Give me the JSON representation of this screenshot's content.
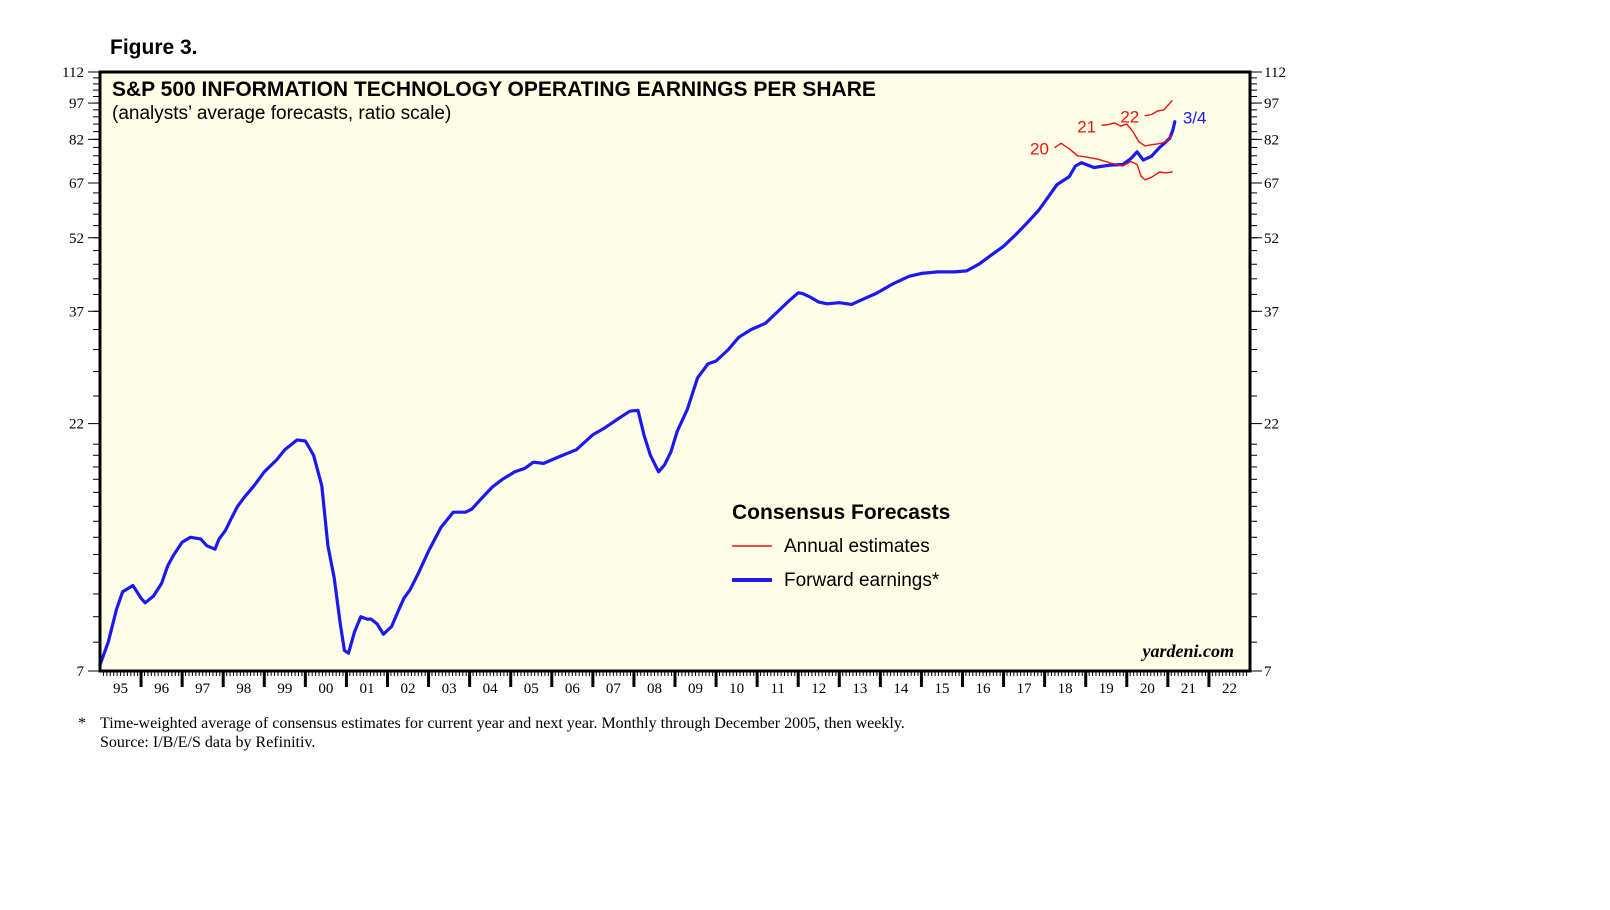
{
  "figure_label": "Figure 3.",
  "footnote": {
    "marker": "*",
    "text": "Time-weighted average of consensus estimates for current year and next year. Monthly through December 2005, then weekly.",
    "source": "Source: I/B/E/S data by Refinitiv."
  },
  "colors": {
    "plot_bg": "#fefee6",
    "forward": "#1a1aee",
    "annual": "#ee1111",
    "frame": "#000000"
  },
  "chart_data": {
    "type": "line",
    "title": "S&P 500 INFORMATION TECHNOLOGY OPERATING EARNINGS PER SHARE",
    "subtitle": "(analysts’ average forecasts, ratio scale)",
    "scale": "log",
    "ylim": [
      7,
      112
    ],
    "xlim": [
      1995,
      2023
    ],
    "y_ticks": [
      7,
      22,
      37,
      52,
      67,
      82,
      97,
      112
    ],
    "y_tick_labels": [
      "7",
      "22",
      "37",
      "52",
      "67",
      "82",
      "97",
      "112"
    ],
    "x_tick_labels": [
      "95",
      "96",
      "97",
      "98",
      "99",
      "00",
      "01",
      "02",
      "03",
      "04",
      "05",
      "06",
      "07",
      "08",
      "09",
      "10",
      "11",
      "12",
      "13",
      "14",
      "15",
      "16",
      "17",
      "18",
      "19",
      "20",
      "21",
      "22"
    ],
    "legend": {
      "title": "Consensus Forecasts",
      "items": [
        {
          "label": "Annual estimates",
          "series": "annual"
        },
        {
          "label": "Forward earnings*",
          "series": "forward"
        }
      ]
    },
    "watermark": "yardeni.com",
    "series": [
      {
        "name": "Forward earnings*",
        "key": "forward",
        "end_label": "3/4",
        "x": [
          1995.0,
          1995.2,
          1995.4,
          1995.55,
          1995.8,
          1996.0,
          1996.1,
          1996.3,
          1996.5,
          1996.65,
          1996.8,
          1997.0,
          1997.2,
          1997.45,
          1997.6,
          1997.8,
          1997.9,
          1998.05,
          1998.2,
          1998.35,
          1998.5,
          1998.75,
          1999.0,
          1999.3,
          1999.5,
          1999.8,
          2000.0,
          2000.2,
          2000.4,
          2000.55,
          2000.7,
          2000.85,
          2000.95,
          2001.05,
          2001.2,
          2001.35,
          2001.5,
          2001.6,
          2001.75,
          2001.9,
          2002.1,
          2002.25,
          2002.4,
          2002.55,
          2002.75,
          2003.0,
          2003.3,
          2003.6,
          2003.9,
          2004.05,
          2004.3,
          2004.55,
          2004.8,
          2005.1,
          2005.35,
          2005.55,
          2005.8,
          2006.2,
          2006.6,
          2007.0,
          2007.3,
          2007.65,
          2007.9,
          2008.1,
          2008.25,
          2008.4,
          2008.6,
          2008.75,
          2008.9,
          2009.05,
          2009.3,
          2009.55,
          2009.8,
          2010.0,
          2010.3,
          2010.55,
          2010.85,
          2011.2,
          2011.45,
          2011.8,
          2012.0,
          2012.1,
          2012.3,
          2012.5,
          2012.7,
          2013.0,
          2013.3,
          2013.6,
          2013.9,
          2014.3,
          2014.7,
          2015.0,
          2015.4,
          2015.8,
          2016.1,
          2016.4,
          2016.7,
          2017.0,
          2017.3,
          2017.6,
          2017.85,
          2018.1,
          2018.3,
          2018.6,
          2018.75,
          2018.9,
          2019.2,
          2019.6,
          2019.9,
          2020.1,
          2020.25,
          2020.4,
          2020.6,
          2020.8,
          2020.95,
          2021.05,
          2021.12,
          2021.17
        ],
        "values": [
          7.2,
          8.0,
          9.3,
          10.1,
          10.4,
          9.8,
          9.6,
          9.9,
          10.5,
          11.4,
          12.0,
          12.7,
          13.0,
          12.9,
          12.5,
          12.3,
          12.9,
          13.4,
          14.2,
          15.0,
          15.6,
          16.5,
          17.6,
          18.6,
          19.5,
          20.4,
          20.3,
          19.0,
          16.5,
          12.5,
          10.8,
          8.7,
          7.7,
          7.6,
          8.4,
          9.0,
          8.9,
          8.9,
          8.7,
          8.3,
          8.6,
          9.2,
          9.8,
          10.2,
          11.0,
          12.2,
          13.6,
          14.6,
          14.6,
          14.8,
          15.6,
          16.4,
          17.0,
          17.6,
          17.9,
          18.4,
          18.3,
          18.9,
          19.5,
          20.9,
          21.6,
          22.6,
          23.3,
          23.4,
          20.8,
          19.0,
          17.6,
          18.2,
          19.3,
          21.2,
          23.5,
          27.2,
          29.0,
          29.4,
          31.0,
          32.8,
          34.0,
          35.0,
          36.6,
          39.0,
          40.3,
          40.2,
          39.5,
          38.6,
          38.3,
          38.5,
          38.2,
          39.2,
          40.2,
          42.0,
          43.5,
          44.1,
          44.4,
          44.4,
          44.6,
          46.0,
          48.0,
          50.0,
          52.8,
          56.0,
          59.0,
          63.0,
          66.5,
          69.0,
          72.5,
          73.6,
          72.0,
          72.8,
          73.0,
          75.0,
          77.4,
          74.5,
          75.8,
          79.0,
          81.0,
          82.5,
          85.5,
          89.0
        ]
      },
      {
        "name": "Annual estimates 20",
        "key": "annual",
        "end_label": "20",
        "x": [
          2018.25,
          2018.4,
          2018.6,
          2018.8,
          2019.0,
          2019.3,
          2019.6,
          2019.9,
          2020.1,
          2020.25,
          2020.35,
          2020.45,
          2020.6,
          2020.8,
          2020.95,
          2021.1
        ],
        "values": [
          79.0,
          80.5,
          78.5,
          76.0,
          75.6,
          74.8,
          73.5,
          72.5,
          74.0,
          73.0,
          69.0,
          68.0,
          68.8,
          70.5,
          70.2,
          70.5
        ]
      },
      {
        "name": "Annual estimates 21",
        "key": "annual",
        "end_label": "21",
        "x": [
          2019.4,
          2019.55,
          2019.7,
          2019.85,
          2020.0,
          2020.15,
          2020.3,
          2020.45,
          2020.6,
          2020.75,
          2020.95,
          2021.1
        ],
        "values": [
          87.5,
          87.8,
          88.5,
          87.2,
          88.0,
          85.0,
          81.0,
          79.5,
          80.0,
          80.3,
          81.0,
          83.5
        ]
      },
      {
        "name": "Annual estimates 22",
        "key": "annual",
        "end_label": "22",
        "x": [
          2020.45,
          2020.6,
          2020.75,
          2020.9,
          2021.0,
          2021.1
        ],
        "values": [
          91.5,
          92.0,
          93.5,
          94.0,
          96.0,
          98.0
        ]
      }
    ]
  }
}
